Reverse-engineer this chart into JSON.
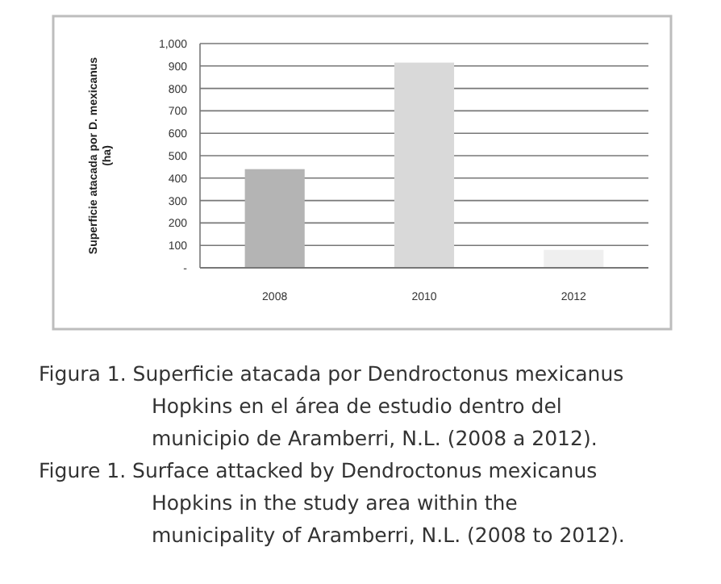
{
  "chart_data": {
    "type": "bar",
    "categories": [
      "2008",
      "2010",
      "2012"
    ],
    "values": [
      440,
      915,
      80
    ],
    "colors": [
      "#b4b4b4",
      "#d9d9d9",
      "#efefef"
    ],
    "ylabel": "Superficie atacada por D. mexicanus (ha)",
    "ylim": [
      0,
      1000
    ],
    "yticks": [
      {
        "value": 0,
        "label": "-"
      },
      100,
      200,
      300,
      400,
      500,
      600,
      700,
      800,
      900,
      {
        "value": 1000,
        "label": "1,000"
      }
    ],
    "grid": "y",
    "annotations": [
      "Figura 1. Superficie atacada por Dendroctonus mexicanus Hopkins en el área de estudio dentro del municipio de Aramberri, N.L. (2008 a 2012).",
      "Figure 1. Surface attacked by Dendroctonus mexicanus Hopkins in the study area within the municipality of Aramberri, N.L. (2008 to 2012)."
    ]
  }
}
